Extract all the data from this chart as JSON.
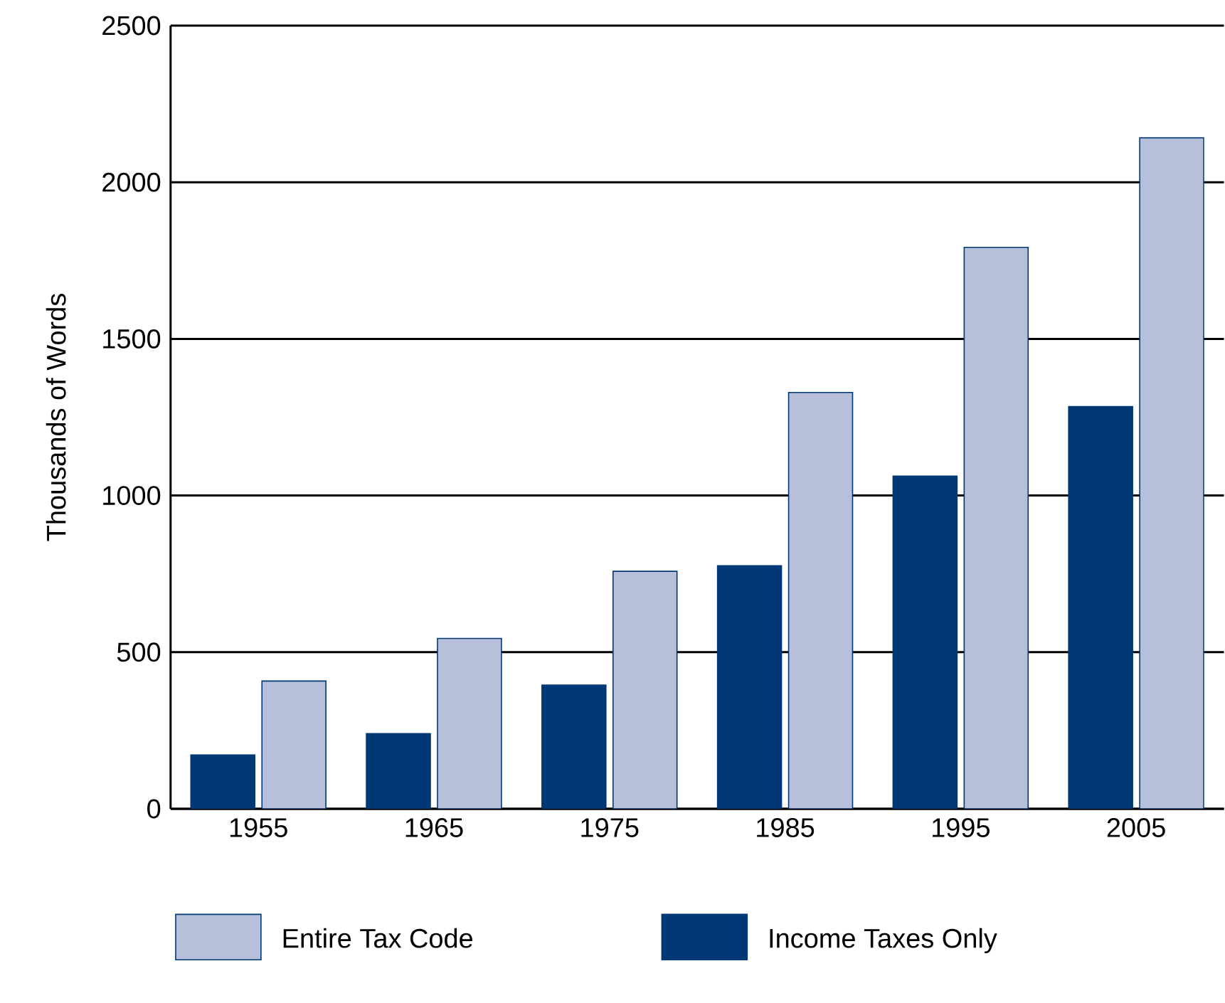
{
  "chart_data": {
    "type": "bar",
    "ylabel": "Thousands of Words",
    "categories": [
      "1955",
      "1965",
      "1975",
      "1985",
      "1995",
      "2005"
    ],
    "series": [
      {
        "name": "Income Taxes Only",
        "color": "#003876",
        "values": [
          172,
          240,
          395,
          776,
          1062,
          1284
        ]
      },
      {
        "name": "Entire Tax Code",
        "color": "#b7bfda",
        "values": [
          408,
          544,
          758,
          1329,
          1792,
          2142
        ]
      }
    ],
    "ylim": [
      0,
      2500
    ],
    "yticks": [
      0,
      500,
      1000,
      1500,
      2000,
      2500
    ],
    "grid": "y",
    "legend": "bottom"
  }
}
